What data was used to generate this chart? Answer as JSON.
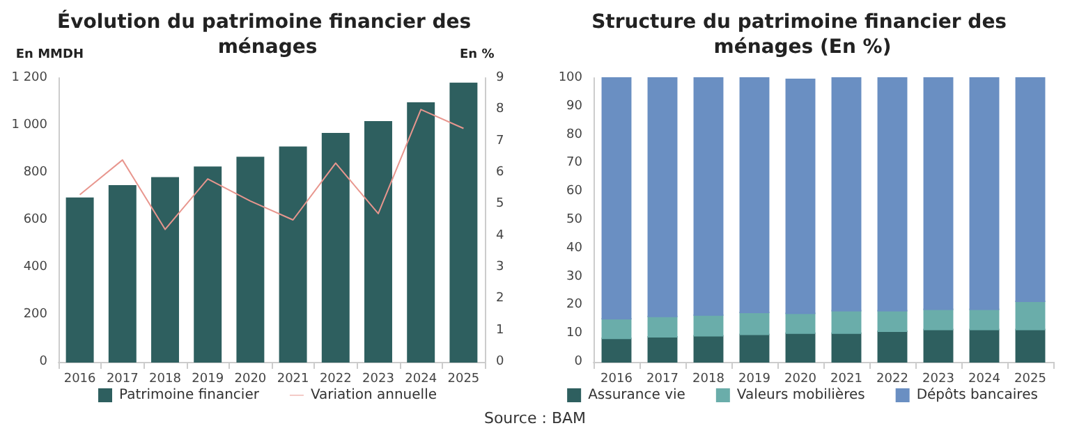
{
  "chart_data": [
    {
      "type": "bar",
      "title": "Évolution du patrimoine financier des ménages",
      "ylabel": "En MMDH",
      "y2label": "En %",
      "categories": [
        "2016",
        "2017",
        "2018",
        "2019",
        "2020",
        "2021",
        "2022",
        "2023",
        "2024",
        "2025"
      ],
      "series": [
        {
          "name": "Patrimoine financier",
          "color": "#2e5f5f",
          "values": [
            692,
            744,
            778,
            823,
            864,
            907,
            965,
            1015,
            1094,
            1177
          ]
        },
        {
          "name": "Variation annuelle",
          "color": "#e8968e",
          "type": "line",
          "axis": "y2",
          "values": [
            5.3,
            6.4,
            4.2,
            5.8,
            5.1,
            4.5,
            6.3,
            4.7,
            8.0,
            7.4
          ]
        }
      ],
      "ylim": [
        0,
        1200
      ],
      "yticks": [
        0,
        200,
        400,
        600,
        800,
        {
          "value": 1000,
          "label": "1 000"
        },
        {
          "value": 1200,
          "label": "1 200"
        }
      ],
      "y2lim": [
        0,
        9
      ],
      "y2ticks": [
        0,
        1,
        2,
        3,
        4,
        5,
        6,
        7,
        8,
        9
      ],
      "marker": "none",
      "legend": "bottom",
      "grid": false
    },
    {
      "type": "bar",
      "title": "Structure du patrimoine financier des ménages (En %)",
      "stacked": true,
      "categories": [
        "2016",
        "2017",
        "2018",
        "2019",
        "2020",
        "2021",
        "2022",
        "2023",
        "2024",
        "2025"
      ],
      "series": [
        {
          "name": "Assurance vie",
          "color": "#2e5f5f",
          "values": [
            8.3,
            8.8,
            9.2,
            9.7,
            10.1,
            10.1,
            10.8,
            11.4,
            11.4,
            11.4
          ]
        },
        {
          "name": "Valeurs mobilières",
          "color": "#6aadaa",
          "values": [
            6.9,
            7.2,
            7.3,
            7.7,
            7.0,
            7.9,
            7.2,
            7.1,
            7.1,
            9.9
          ]
        },
        {
          "name": "Dépôts bancaires",
          "color": "#6a8fc2",
          "values": [
            84.8,
            84.0,
            83.5,
            82.6,
            82.4,
            82.0,
            82.0,
            81.5,
            81.5,
            78.7
          ]
        }
      ],
      "ylim": [
        0,
        100
      ],
      "yticks": [
        0,
        10,
        20,
        30,
        40,
        50,
        60,
        70,
        80,
        90,
        100
      ],
      "legend": "bottom",
      "grid": false,
      "annotations": [
        "Source : BAM"
      ]
    }
  ]
}
